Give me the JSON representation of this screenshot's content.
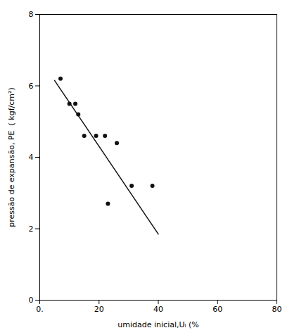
{
  "chart_data": {
    "type": "scatter",
    "xlabel": "umidade inicial,Uᵢ (%",
    "ylabel": "pressão de expansão, PE  ( kgf/cm²)",
    "xlim": [
      0,
      80
    ],
    "ylim": [
      0,
      8
    ],
    "xticks": [
      {
        "value": 0,
        "label": "0."
      },
      20,
      40,
      60,
      80
    ],
    "yticks": [
      0,
      2,
      4,
      6,
      8
    ],
    "grid": false,
    "series": [
      {
        "type": "scatter",
        "marker": "circle",
        "color": "#111111",
        "x": [
          7,
          10,
          12,
          13,
          15,
          19,
          22,
          26,
          23,
          31,
          38
        ],
        "values": [
          6.2,
          5.5,
          5.5,
          5.2,
          4.6,
          4.6,
          4.6,
          4.4,
          2.7,
          3.2,
          3.2
        ]
      },
      {
        "type": "line",
        "line_style": "solid",
        "color": "#111111",
        "x": [
          5,
          40
        ],
        "values": [
          6.15,
          1.85
        ]
      }
    ]
  }
}
